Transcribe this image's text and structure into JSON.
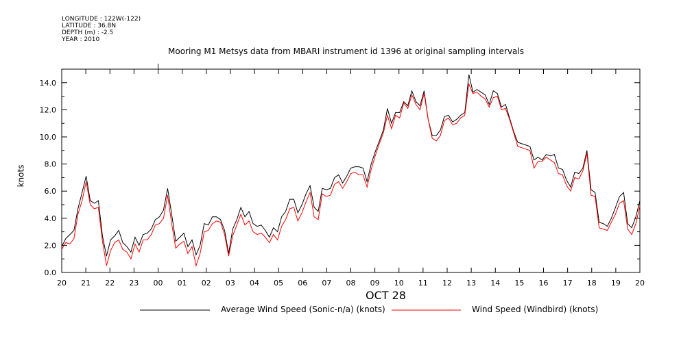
{
  "header": {
    "longitude": "LONGITUDE : 122W(-122)",
    "latitude": "LATITUDE : 36.8N",
    "depth": "DEPTH (m) : -2.5",
    "year": "YEAR : 2010"
  },
  "chart_data": {
    "type": "line",
    "title": "Mooring M1 Metsys data from MBARI instrument id 1396 at original sampling intervals",
    "xlabel": "OCT 28",
    "ylabel": "knots",
    "ylim": [
      0,
      15
    ],
    "yticks": [
      "0.0",
      "2.0",
      "4.0",
      "6.0",
      "8.0",
      "10.0",
      "12.0",
      "14.0"
    ],
    "xticks": [
      "20",
      "21",
      "22",
      "23",
      "00",
      "01",
      "02",
      "03",
      "04",
      "05",
      "06",
      "07",
      "08",
      "09",
      "10",
      "11",
      "12",
      "13",
      "14",
      "15",
      "16",
      "17",
      "18",
      "19",
      "20"
    ],
    "xlim_hours": [
      0,
      24
    ],
    "legend": "bottom",
    "series": [
      {
        "name": "Average Wind Speed (Sonic-n/a) (knots)",
        "color": "#000000",
        "values": [
          1.9,
          2.5,
          2.8,
          3.1,
          4.7,
          5.9,
          7.1,
          5.3,
          5.1,
          5.3,
          2.7,
          1.2,
          2.4,
          2.7,
          3.1,
          2.2,
          1.9,
          1.5,
          2.6,
          2.0,
          2.8,
          2.9,
          3.2,
          3.9,
          4.1,
          4.6,
          6.2,
          4.3,
          2.3,
          2.6,
          2.9,
          1.9,
          2.4,
          1.3,
          2.0,
          3.6,
          3.5,
          4.1,
          4.1,
          3.9,
          3.1,
          1.4,
          3.2,
          3.9,
          4.8,
          4.1,
          4.5,
          3.6,
          3.4,
          3.5,
          3.1,
          2.6,
          3.3,
          3.0,
          4.1,
          4.5,
          5.4,
          5.4,
          4.4,
          5.0,
          5.8,
          6.4,
          4.8,
          4.5,
          6.2,
          6.1,
          6.2,
          7.0,
          7.2,
          6.6,
          7.1,
          7.7,
          7.8,
          7.8,
          7.7,
          6.7,
          8.0,
          8.9,
          9.7,
          10.5,
          12.1,
          11.0,
          11.8,
          11.8,
          12.6,
          12.3,
          13.4,
          12.6,
          12.3,
          13.4,
          11.3,
          10.1,
          10.1,
          10.5,
          11.5,
          11.6,
          11.1,
          11.3,
          11.6,
          11.8,
          14.6,
          13.3,
          13.5,
          13.3,
          13.1,
          12.4,
          13.4,
          13.2,
          12.2,
          12.4,
          11.4,
          10.4,
          9.6,
          9.5,
          9.4,
          9.3,
          8.3,
          8.5,
          8.3,
          8.7,
          8.6,
          8.7,
          7.7,
          7.6,
          6.8,
          6.3,
          7.4,
          7.3,
          7.7,
          9.0,
          6.1,
          5.9,
          3.7,
          3.6,
          3.4,
          4.0,
          4.8,
          5.6,
          5.9,
          3.6,
          3.3,
          4.1,
          5.3
        ]
      },
      {
        "name": "Wind Speed (Windbird) (knots)",
        "color": "#ff0000",
        "values": [
          1.7,
          2.2,
          2.1,
          2.5,
          4.3,
          5.3,
          6.7,
          5.0,
          4.7,
          4.8,
          2.3,
          0.5,
          1.6,
          2.2,
          2.4,
          1.7,
          1.5,
          1.0,
          2.1,
          1.5,
          2.4,
          2.4,
          2.8,
          3.5,
          3.6,
          4.0,
          5.7,
          3.6,
          1.8,
          2.1,
          2.3,
          1.4,
          1.9,
          0.5,
          1.4,
          3.0,
          3.1,
          3.6,
          3.8,
          3.7,
          2.8,
          1.2,
          2.7,
          3.5,
          4.3,
          3.5,
          3.8,
          3.0,
          2.8,
          2.9,
          2.6,
          2.2,
          2.8,
          2.4,
          3.4,
          3.9,
          4.7,
          4.8,
          3.8,
          4.4,
          5.2,
          5.9,
          4.1,
          3.9,
          5.8,
          5.6,
          5.7,
          6.5,
          6.7,
          6.2,
          6.7,
          7.3,
          7.4,
          7.2,
          7.2,
          6.3,
          7.6,
          8.6,
          9.5,
          10.3,
          11.6,
          10.6,
          11.6,
          11.4,
          12.5,
          12.1,
          13.1,
          12.4,
          12.0,
          13.2,
          11.3,
          9.9,
          9.7,
          10.1,
          11.2,
          11.4,
          10.9,
          11.0,
          11.4,
          11.6,
          13.9,
          13.2,
          13.3,
          13.0,
          12.8,
          12.2,
          12.9,
          13.0,
          12.0,
          12.1,
          11.3,
          10.3,
          9.3,
          9.2,
          9.1,
          9.0,
          7.7,
          8.2,
          8.2,
          8.5,
          8.3,
          8.1,
          7.3,
          7.2,
          6.4,
          6.0,
          7.0,
          6.9,
          7.5,
          8.8,
          5.7,
          5.6,
          3.3,
          3.2,
          3.1,
          3.7,
          4.3,
          5.1,
          5.3,
          3.2,
          2.8,
          3.6,
          4.9
        ]
      }
    ]
  }
}
